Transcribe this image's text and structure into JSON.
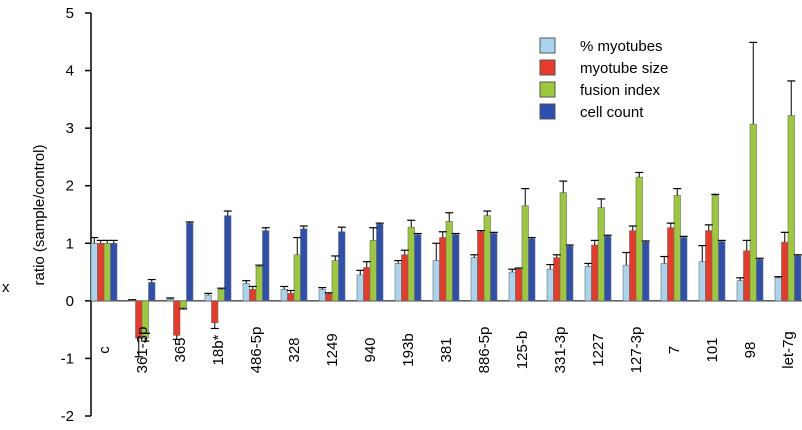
{
  "chart_data": {
    "type": "bar",
    "ylabel": "ratio (sample/control)",
    "ylim": [
      -2,
      5
    ],
    "yticks": [
      "5",
      "4",
      "3",
      "2",
      "1",
      "0",
      "-1",
      "-2"
    ],
    "grid": false,
    "legend_position": "top-right",
    "categories": [
      "c",
      "361-3p",
      "365",
      "18b*",
      "486-5p",
      "328",
      "1249",
      "940",
      "193b",
      "381",
      "886-5p",
      "125-b",
      "331-3p",
      "1227",
      "127-3p",
      "7",
      "101",
      "98",
      "let-7g"
    ],
    "series": [
      {
        "name": "% myotubes",
        "color": "#a9d4ee",
        "values": [
          1.0,
          0.01,
          0.03,
          0.1,
          0.3,
          0.2,
          0.2,
          0.45,
          0.65,
          0.7,
          0.75,
          0.5,
          0.55,
          0.6,
          0.62,
          0.65,
          0.68,
          0.35,
          0.4
        ],
        "errors": [
          0.1,
          0.01,
          0.02,
          0.03,
          0.05,
          0.05,
          0.03,
          0.08,
          0.05,
          0.3,
          0.05,
          0.05,
          0.08,
          0.05,
          0.22,
          0.12,
          0.28,
          0.05,
          0.02
        ]
      },
      {
        "name": "myotube size",
        "color": "#e8392b",
        "values": [
          1.0,
          -0.65,
          -0.6,
          -0.38,
          0.2,
          0.13,
          0.12,
          0.58,
          0.8,
          1.1,
          1.2,
          0.55,
          0.75,
          0.97,
          1.22,
          1.27,
          1.22,
          0.87,
          1.02
        ],
        "errors": [
          0.05,
          0.32,
          0.07,
          0.1,
          0.05,
          0.05,
          0.02,
          0.1,
          0.08,
          0.1,
          0.02,
          0.02,
          0.05,
          0.08,
          0.08,
          0.08,
          0.1,
          0.18,
          0.17
        ]
      },
      {
        "name": "fusion index",
        "color": "#9cc83b",
        "values": [
          1.0,
          -0.65,
          -0.12,
          0.2,
          0.6,
          0.8,
          0.7,
          1.05,
          1.28,
          1.38,
          1.48,
          1.65,
          1.88,
          1.62,
          2.15,
          1.83,
          1.83,
          3.07,
          3.22
        ],
        "errors": [
          0.05,
          0.05,
          0.02,
          0.02,
          0.02,
          0.3,
          0.08,
          0.22,
          0.12,
          0.15,
          0.08,
          0.3,
          0.2,
          0.15,
          0.08,
          0.12,
          0.02,
          1.42,
          0.6
        ]
      },
      {
        "name": "cell count",
        "color": "#2c4fb0",
        "values": [
          1.0,
          0.32,
          1.35,
          1.48,
          1.22,
          1.25,
          1.2,
          1.33,
          1.15,
          1.15,
          1.17,
          1.08,
          0.95,
          1.12,
          1.02,
          1.1,
          1.03,
          0.72,
          0.78
        ],
        "errors": [
          0.05,
          0.05,
          0.02,
          0.08,
          0.05,
          0.05,
          0.08,
          0.02,
          0.02,
          0.02,
          0.02,
          0.02,
          0.02,
          0.02,
          0.02,
          0.02,
          0.02,
          0.02,
          0.02
        ]
      }
    ]
  },
  "margin_label": "x"
}
